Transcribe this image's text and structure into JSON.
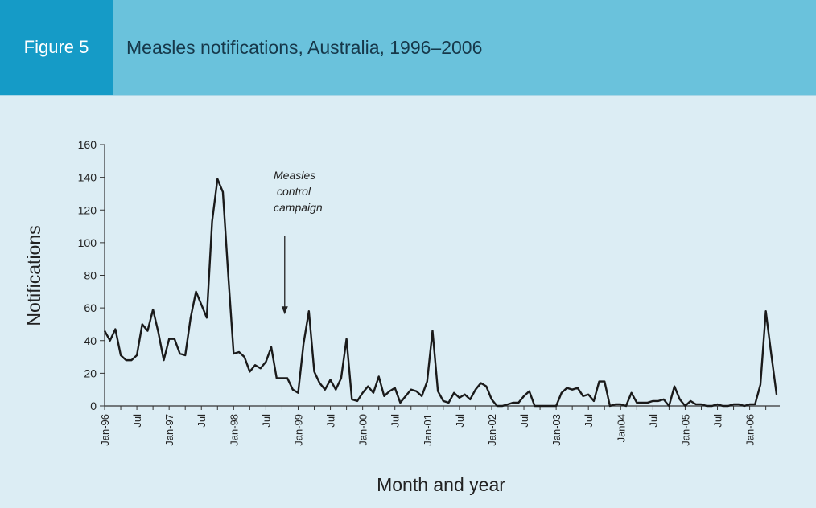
{
  "header": {
    "figure_label": "Figure 5",
    "title": "Measles notifications, Australia, 1996–2006"
  },
  "colors": {
    "header_bg": "#6ac2dc",
    "label_bg": "#159bc7",
    "page_bg": "#dcedf4",
    "line": "#1a1a1a"
  },
  "chart_data": {
    "type": "line",
    "title": "Measles notifications, Australia, 1996–2006",
    "xlabel": "Month and year",
    "ylabel": "Notifications",
    "ylim": [
      0,
      160
    ],
    "yticks": [
      0,
      20,
      40,
      60,
      80,
      100,
      120,
      140,
      160
    ],
    "x_start": "Jan-96",
    "x_step": "1 month",
    "x_tick_labels": [
      {
        "index": 0,
        "label": "Jan-96"
      },
      {
        "index": 6,
        "label": "Jul"
      },
      {
        "index": 12,
        "label": "Jan-97"
      },
      {
        "index": 18,
        "label": "Jul"
      },
      {
        "index": 24,
        "label": "Jan-98"
      },
      {
        "index": 30,
        "label": "Jul"
      },
      {
        "index": 36,
        "label": "Jan-99"
      },
      {
        "index": 42,
        "label": "Jul"
      },
      {
        "index": 48,
        "label": "Jan-00"
      },
      {
        "index": 54,
        "label": "Jul"
      },
      {
        "index": 60,
        "label": "Jan-01"
      },
      {
        "index": 66,
        "label": "Jul"
      },
      {
        "index": 72,
        "label": "Jan-02"
      },
      {
        "index": 78,
        "label": "Jul"
      },
      {
        "index": 84,
        "label": "Jan-03"
      },
      {
        "index": 90,
        "label": "Jul"
      },
      {
        "index": 96,
        "label": "Jan04"
      },
      {
        "index": 102,
        "label": "Jul"
      },
      {
        "index": 108,
        "label": "Jan-05"
      },
      {
        "index": 114,
        "label": "Jul"
      },
      {
        "index": 120,
        "label": "Jan-06"
      }
    ],
    "series": [
      {
        "name": "Notifications",
        "values": [
          46,
          40,
          47,
          31,
          28,
          28,
          31,
          50,
          46,
          59,
          45,
          28,
          41,
          41,
          32,
          31,
          54,
          70,
          62,
          54,
          113,
          139,
          131,
          80,
          32,
          33,
          30,
          21,
          25,
          23,
          27,
          36,
          17,
          17,
          17,
          10,
          8,
          38,
          58,
          21,
          14,
          10,
          16,
          10,
          17,
          41,
          4,
          3,
          8,
          12,
          8,
          18,
          6,
          9,
          11,
          2,
          6,
          10,
          9,
          6,
          15,
          46,
          9,
          3,
          2,
          8,
          5,
          7,
          4,
          10,
          14,
          12,
          4,
          0,
          0,
          1,
          2,
          2,
          6,
          9,
          0,
          0,
          0,
          0,
          0,
          8,
          11,
          10,
          11,
          6,
          7,
          3,
          15,
          15,
          0,
          1,
          1,
          0,
          8,
          2,
          2,
          2,
          3,
          3,
          4,
          0,
          12,
          4,
          0,
          3,
          1,
          1,
          0,
          0,
          1,
          0,
          0,
          1,
          1,
          0,
          1,
          1,
          13,
          58,
          32,
          7
        ]
      }
    ],
    "annotations": [
      {
        "lines": [
          "Measles",
          "control",
          "campaign"
        ],
        "x_index": 33.5,
        "arrow_to_y": 58
      }
    ]
  }
}
